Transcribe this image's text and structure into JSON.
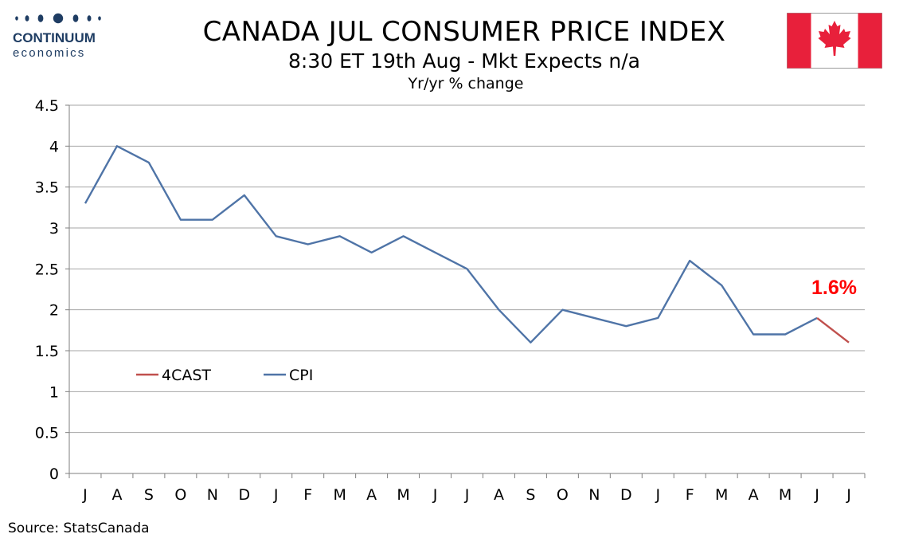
{
  "brand": {
    "name": "CONTINUUM",
    "tagline": "economics"
  },
  "header": {
    "title": "CANADA JUL CONSUMER PRICE INDEX",
    "subtitle": "8:30 ET 19th Aug - Mkt Expects n/a",
    "units": "Yr/yr % change"
  },
  "flag": {
    "country": "Canada",
    "red": "#e8203b",
    "white": "#ffffff"
  },
  "source": "Source: StatsCanada",
  "chart_data": {
    "type": "line",
    "title": "CANADA JUL CONSUMER PRICE INDEX",
    "subtitle": "Yr/yr % change",
    "xlabel": "",
    "ylabel": "",
    "categories": [
      "J",
      "A",
      "S",
      "O",
      "N",
      "D",
      "J",
      "F",
      "M",
      "A",
      "M",
      "J",
      "J",
      "A",
      "S",
      "O",
      "N",
      "D",
      "J",
      "F",
      "M",
      "A",
      "M",
      "J",
      "J"
    ],
    "yticks": [
      "0",
      "0.5",
      "1",
      "1.5",
      "2",
      "2.5",
      "3",
      "3.5",
      "4",
      "4.5"
    ],
    "ylim": [
      0,
      4.5
    ],
    "grid": true,
    "legend_position": "lower-left",
    "series": [
      {
        "name": "CPI",
        "color": "#4f74a7",
        "values": [
          3.3,
          4.0,
          3.8,
          3.1,
          3.1,
          3.4,
          2.9,
          2.8,
          2.9,
          2.7,
          2.9,
          2.7,
          2.5,
          2.0,
          1.6,
          2.0,
          1.9,
          1.8,
          1.9,
          2.6,
          2.3,
          1.7,
          1.7,
          1.9,
          null
        ]
      },
      {
        "name": "4CAST",
        "color": "#c0504d",
        "values": [
          null,
          null,
          null,
          null,
          null,
          null,
          null,
          null,
          null,
          null,
          null,
          null,
          null,
          null,
          null,
          null,
          null,
          null,
          null,
          null,
          null,
          null,
          null,
          1.9,
          1.6
        ]
      }
    ],
    "legend_order": [
      "4CAST",
      "CPI"
    ],
    "annotation": {
      "text": "1.6%",
      "color": "#ff0000"
    }
  }
}
